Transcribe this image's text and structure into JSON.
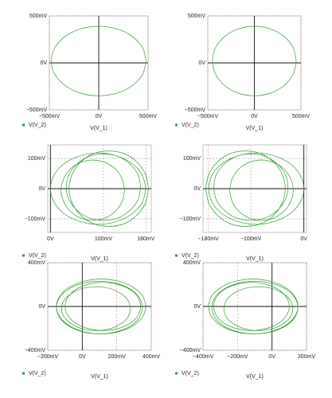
{
  "chart_data": [
    {
      "type": "line",
      "xlabel": "V(V_1)",
      "grid": true,
      "xlim": [
        -500,
        500
      ],
      "ylim": [
        -500,
        500
      ],
      "xticks": [
        {
          "value": -500,
          "label": "−500mV"
        },
        {
          "value": 0,
          "label": "0V"
        },
        {
          "value": 500,
          "label": "500mV"
        }
      ],
      "yticks": [
        {
          "value": -500,
          "label": "−500mV"
        },
        {
          "value": 0,
          "label": "0V"
        },
        {
          "value": 500,
          "label": "500mV"
        }
      ],
      "series": [
        {
          "name": "V(V_2)",
          "color": "#2e9e2e",
          "x": [
            480,
            444,
            339,
            184,
            0,
            -184,
            -339,
            -444,
            -480,
            -444,
            -339,
            -184,
            0,
            184,
            339,
            444,
            480
          ],
          "values": [
            20,
            162,
            282,
            362,
            390,
            362,
            282,
            162,
            20,
            -122,
            -242,
            -322,
            -350,
            -322,
            -242,
            -122,
            20
          ]
        }
      ]
    },
    {
      "type": "line",
      "xlabel": "V(V_1)",
      "grid": true,
      "xlim": [
        -500,
        500
      ],
      "ylim": [
        -500,
        500
      ],
      "xticks": [
        {
          "value": -500,
          "label": "−500mV"
        },
        {
          "value": 0,
          "label": "0V"
        },
        {
          "value": 500,
          "label": "500mV"
        }
      ],
      "yticks": [
        {
          "value": -500,
          "label": "−500mV"
        },
        {
          "value": 0,
          "label": "0V"
        },
        {
          "value": 500,
          "label": "500mV"
        }
      ],
      "series": [
        {
          "name": "V(V_2)",
          "color": "#2e9e2e",
          "x": [
            450,
            416,
            318,
            172,
            0,
            -172,
            -318,
            -416,
            -450,
            -416,
            -318,
            -172,
            0,
            172,
            318,
            416,
            450
          ],
          "values": [
            20,
            162,
            282,
            362,
            390,
            362,
            282,
            162,
            20,
            -122,
            -242,
            -322,
            -350,
            -322,
            -242,
            -122,
            20
          ]
        }
      ]
    },
    {
      "type": "line",
      "xlabel": "V(V_1)",
      "grid": true,
      "xlim": [
        -5,
        190
      ],
      "ylim": [
        -145,
        145
      ],
      "xticks": [
        {
          "value": 0,
          "label": "0V"
        },
        {
          "value": 100,
          "label": "100mV"
        },
        {
          "value": 180,
          "label": "180mV"
        }
      ],
      "yticks": [
        {
          "value": -100,
          "label": "−100mV"
        },
        {
          "value": 0,
          "label": "0V"
        },
        {
          "value": 100,
          "label": "100mV"
        }
      ],
      "series": [
        {
          "name": "V(V_2)",
          "color": "#2e9e2e",
          "x": [
            180,
            173,
            154,
            124,
            90,
            56,
            26,
            7,
            0,
            7,
            26,
            56,
            90,
            124,
            154,
            173,
            180,
            null,
            170,
            165,
            149,
            127,
            100,
            73,
            51,
            35,
            30,
            35,
            51,
            73,
            100,
            127,
            149,
            165,
            170,
            null,
            140,
            135,
            122,
            103,
            80,
            57,
            38,
            25,
            20,
            25,
            38,
            57,
            80,
            103,
            122,
            135,
            140,
            null,
            185,
            179,
            163,
            139,
            110,
            81,
            57,
            41,
            35,
            41,
            57,
            81,
            110,
            139,
            163,
            179,
            185
          ],
          "values": [
            0,
            45,
            83,
            109,
            118,
            109,
            83,
            45,
            0,
            -45,
            -83,
            -109,
            -118,
            -109,
            -83,
            -45,
            0,
            null,
            5,
            47,
            83,
            107,
            115,
            107,
            83,
            47,
            5,
            -37,
            -73,
            -97,
            -105,
            -97,
            -73,
            -37,
            5,
            null,
            -5,
            33,
            66,
            87,
            95,
            87,
            66,
            33,
            -5,
            -43,
            -76,
            -97,
            -105,
            -97,
            -76,
            -43,
            -5,
            null,
            0,
            48,
            88,
            116,
            125,
            116,
            88,
            48,
            0,
            -48,
            -88,
            -116,
            -125,
            -116,
            -88,
            -48,
            0
          ]
        }
      ]
    },
    {
      "type": "line",
      "xlabel": "V(V_1)",
      "grid": true,
      "xlim": [
        -190,
        5
      ],
      "ylim": [
        -145,
        145
      ],
      "xticks": [
        {
          "value": -180,
          "label": "−180mV"
        },
        {
          "value": -100,
          "label": "−100mV"
        },
        {
          "value": 0,
          "label": "0V"
        }
      ],
      "yticks": [
        {
          "value": -100,
          "label": "−100mV"
        },
        {
          "value": 0,
          "label": "0V"
        },
        {
          "value": 100,
          "label": "100mV"
        }
      ],
      "series": [
        {
          "name": "V(V_2)",
          "color": "#2e9e2e",
          "x": [
            -180,
            -173,
            -154,
            -124,
            -90,
            -56,
            -26,
            -7,
            0,
            -7,
            -26,
            -56,
            -90,
            -124,
            -154,
            -173,
            -180,
            null,
            -170,
            -165,
            -149,
            -127,
            -100,
            -73,
            -51,
            -35,
            -30,
            -35,
            -51,
            -73,
            -100,
            -127,
            -149,
            -165,
            -170,
            null,
            -140,
            -135,
            -122,
            -103,
            -80,
            -57,
            -38,
            -25,
            -20,
            -25,
            -38,
            -57,
            -80,
            -103,
            -122,
            -135,
            -140,
            null,
            -185,
            -179,
            -163,
            -139,
            -110,
            -81,
            -57,
            -41,
            -35,
            -41,
            -57,
            -81,
            -110,
            -139,
            -163,
            -179,
            -185
          ],
          "values": [
            0,
            45,
            83,
            109,
            118,
            109,
            83,
            45,
            0,
            -45,
            -83,
            -109,
            -118,
            -109,
            -83,
            -45,
            0,
            null,
            5,
            47,
            83,
            107,
            115,
            107,
            83,
            47,
            5,
            -37,
            -73,
            -97,
            -105,
            -97,
            -73,
            -37,
            5,
            null,
            -5,
            33,
            66,
            87,
            95,
            87,
            66,
            33,
            -5,
            -43,
            -76,
            -97,
            -105,
            -97,
            -76,
            -43,
            -5,
            null,
            0,
            48,
            88,
            116,
            125,
            116,
            88,
            48,
            0,
            -48,
            -88,
            -116,
            -125,
            -116,
            -88,
            -48,
            0
          ]
        }
      ]
    },
    {
      "type": "line",
      "xlabel": "V(V_1)",
      "grid": true,
      "xlim": [
        -200,
        400
      ],
      "ylim": [
        -400,
        400
      ],
      "xticks": [
        {
          "value": -200,
          "label": "−200mV"
        },
        {
          "value": 0,
          "label": "0V"
        },
        {
          "value": 200,
          "label": "200mV"
        },
        {
          "value": 400,
          "label": "400mV"
        }
      ],
      "yticks": [
        {
          "value": -400,
          "label": "−400mV"
        },
        {
          "value": 0,
          "label": "0V"
        },
        {
          "value": 400,
          "label": "400mV"
        }
      ],
      "series": [
        {
          "name": "V(V_2)",
          "color": "#2e9e2e",
          "x": [
            350,
            331,
            277,
            196,
            100,
            4,
            -77,
            -131,
            -150,
            -131,
            -77,
            4,
            100,
            196,
            277,
            331,
            350,
            null,
            340,
            323,
            276,
            204,
            120,
            36,
            -36,
            -83,
            -100,
            -83,
            -36,
            36,
            120,
            204,
            276,
            323,
            340,
            null,
            280,
            265,
            221,
            157,
            80,
            3,
            -61,
            -105,
            -120,
            -105,
            -61,
            3,
            80,
            157,
            221,
            265,
            280,
            null,
            370,
            350,
            294,
            210,
            110,
            10,
            -74,
            -130,
            -150,
            -130,
            -74,
            10,
            110,
            210,
            294,
            350,
            370
          ],
          "values": [
            -10,
            82,
            160,
            212,
            230,
            212,
            160,
            82,
            -10,
            -102,
            -180,
            -232,
            -250,
            -232,
            -180,
            -102,
            -10,
            null,
            0,
            84,
            156,
            203,
            220,
            203,
            156,
            84,
            0,
            -84,
            -156,
            -203,
            -220,
            -203,
            -156,
            -84,
            0,
            null,
            -20,
            57,
            121,
            165,
            180,
            165,
            121,
            57,
            -20,
            -97,
            -161,
            -205,
            -220,
            -205,
            -161,
            -97,
            -20,
            null,
            0,
            96,
            177,
            231,
            250,
            231,
            177,
            96,
            0,
            -96,
            -177,
            -231,
            -250,
            -231,
            -177,
            -96,
            0
          ]
        }
      ]
    },
    {
      "type": "line",
      "xlabel": "V(V_1)",
      "grid": true,
      "xlim": [
        -400,
        200
      ],
      "ylim": [
        -400,
        400
      ],
      "xticks": [
        {
          "value": -400,
          "label": "−400mV"
        },
        {
          "value": -200,
          "label": "−200mV"
        },
        {
          "value": 0,
          "label": "0V"
        },
        {
          "value": 200,
          "label": "200mV"
        }
      ],
      "yticks": [
        {
          "value": -400,
          "label": "−400mV"
        },
        {
          "value": 0,
          "label": "0V"
        },
        {
          "value": 400,
          "label": "400mV"
        }
      ],
      "series": [
        {
          "name": "V(V_2)",
          "color": "#2e9e2e",
          "x": [
            -350,
            -331,
            -277,
            -196,
            -100,
            -4,
            77,
            131,
            150,
            131,
            77,
            -4,
            -100,
            -196,
            -277,
            -331,
            -350,
            null,
            -340,
            -323,
            -276,
            -204,
            -120,
            -36,
            36,
            83,
            100,
            83,
            36,
            -36,
            -120,
            -204,
            -276,
            -323,
            -340,
            null,
            -280,
            -265,
            -221,
            -157,
            -80,
            -3,
            61,
            105,
            120,
            105,
            61,
            -3,
            -80,
            -157,
            -221,
            -265,
            -280,
            null,
            -370,
            -350,
            -294,
            -210,
            -110,
            -10,
            74,
            130,
            150,
            130,
            74,
            -10,
            -110,
            -210,
            -294,
            -350,
            -370
          ],
          "values": [
            -10,
            82,
            160,
            212,
            230,
            212,
            160,
            82,
            -10,
            -102,
            -180,
            -232,
            -250,
            -232,
            -180,
            -102,
            -10,
            null,
            0,
            84,
            156,
            203,
            220,
            203,
            156,
            84,
            0,
            -84,
            -156,
            -203,
            -220,
            -203,
            -156,
            -84,
            0,
            null,
            -20,
            57,
            121,
            165,
            180,
            165,
            121,
            57,
            -20,
            -97,
            -161,
            -205,
            -220,
            -205,
            -161,
            -97,
            -20,
            null,
            0,
            96,
            177,
            231,
            250,
            231,
            177,
            96,
            0,
            -96,
            -177,
            -231,
            -250,
            -231,
            -177,
            -96,
            0
          ]
        }
      ]
    }
  ]
}
